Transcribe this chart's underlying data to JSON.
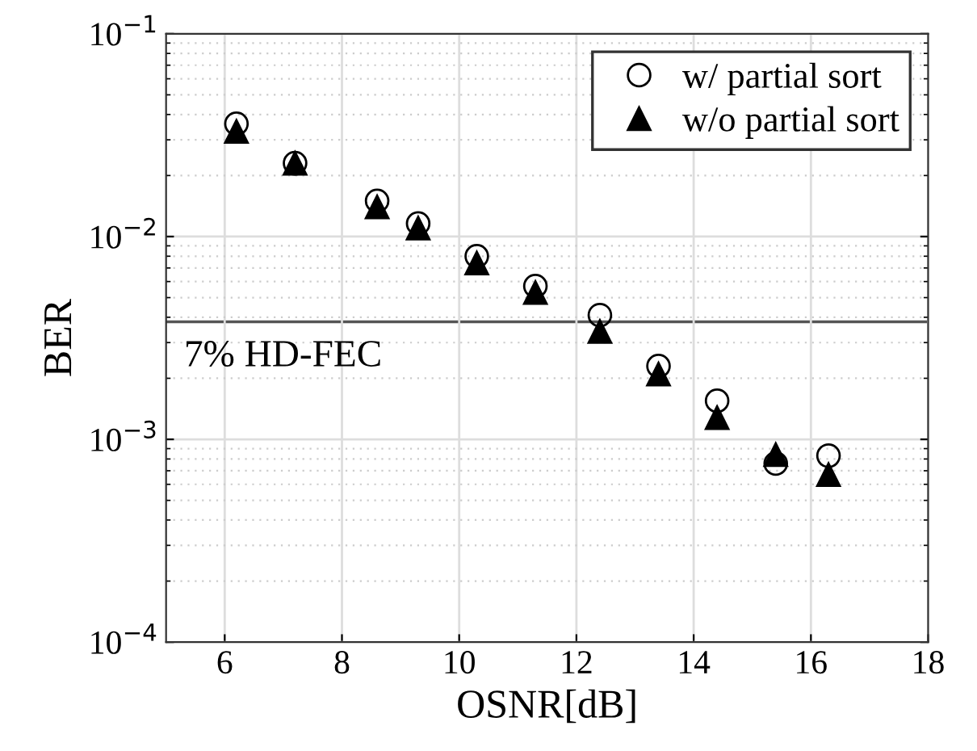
{
  "chart_data": {
    "type": "scatter",
    "xlabel": "OSNR[dB]",
    "ylabel": "BER",
    "log": "y",
    "xlim": [
      5,
      18
    ],
    "xticks": [
      6,
      8,
      10,
      12,
      14,
      16,
      18
    ],
    "ylim": [
      0.0001,
      0.1
    ],
    "yticks": [
      {
        "value": 0.0001,
        "label": "10$^{−4}$"
      },
      {
        "value": 0.001,
        "label": "10$^{−3}$"
      },
      {
        "value": 0.01,
        "label": "10$^{−2}$"
      },
      {
        "value": 0.1,
        "label": "10$^{−1}$"
      }
    ],
    "grid": true,
    "legend": "top right",
    "series": [
      {
        "name": "w/ partial sort",
        "color": "#000000",
        "marker": "circle",
        "x": [
          6.2,
          7.2,
          8.6,
          9.3,
          10.3,
          11.3,
          12.4,
          13.4,
          14.4,
          15.4,
          16.3
        ],
        "values": [
          0.036,
          0.023,
          0.015,
          0.0116,
          0.008,
          0.0057,
          0.0041,
          0.0023,
          0.00155,
          0.00076,
          0.00083
        ]
      },
      {
        "name": "w/o partial sort",
        "color": "#000000",
        "marker": "triangle",
        "x": [
          6.2,
          7.2,
          8.6,
          9.3,
          10.3,
          11.3,
          12.4,
          13.4,
          14.4,
          15.4,
          16.3
        ],
        "values": [
          0.033,
          0.023,
          0.014,
          0.011,
          0.0074,
          0.0053,
          0.0034,
          0.0021,
          0.00128,
          0.00084,
          0.00067
        ]
      }
    ],
    "ref_lines": [
      {
        "axis": "y",
        "value": 0.0038,
        "label": "7% HD-FEC",
        "color": "#555555"
      }
    ]
  }
}
